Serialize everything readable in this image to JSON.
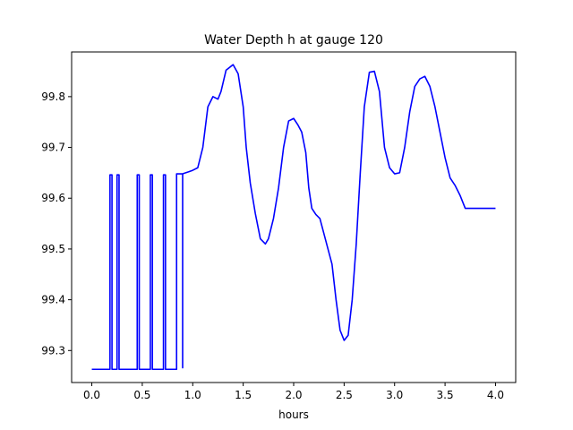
{
  "chart_data": {
    "type": "line",
    "title": "Water Depth h at gauge 120",
    "xlabel": "hours",
    "ylabel": "",
    "xlim": [
      -0.2,
      4.2
    ],
    "ylim": [
      99.237,
      99.888
    ],
    "xticks": [
      0.0,
      0.5,
      1.0,
      1.5,
      2.0,
      2.5,
      3.0,
      3.5,
      4.0
    ],
    "xtick_labels": [
      "0.0",
      "0.5",
      "1.0",
      "1.5",
      "2.0",
      "2.5",
      "3.0",
      "3.5",
      "4.0"
    ],
    "yticks": [
      99.3,
      99.4,
      99.5,
      99.6,
      99.7,
      99.8
    ],
    "ytick_labels": [
      "99.3",
      "99.4",
      "99.5",
      "99.6",
      "99.7",
      "99.8"
    ],
    "grid": false,
    "series": [
      {
        "name": "",
        "color": "#0000ff",
        "x": [
          0.0,
          0.18,
          0.18,
          0.2,
          0.2,
          0.25,
          0.25,
          0.27,
          0.27,
          0.45,
          0.45,
          0.47,
          0.47,
          0.58,
          0.58,
          0.6,
          0.6,
          0.71,
          0.71,
          0.73,
          0.73,
          0.84,
          0.84,
          0.9,
          0.9,
          0.9,
          0.9,
          0.96,
          1.0,
          1.05,
          1.1,
          1.15,
          1.2,
          1.25,
          1.28,
          1.33,
          1.4,
          1.45,
          1.5,
          1.53,
          1.57,
          1.62,
          1.67,
          1.72,
          1.75,
          1.8,
          1.85,
          1.9,
          1.95,
          2.0,
          2.04,
          2.08,
          2.12,
          2.15,
          2.18,
          2.22,
          2.26,
          2.3,
          2.34,
          2.38,
          2.42,
          2.46,
          2.5,
          2.54,
          2.58,
          2.62,
          2.66,
          2.7,
          2.75,
          2.8,
          2.85,
          2.9,
          2.95,
          3.0,
          3.05,
          3.1,
          3.15,
          3.2,
          3.25,
          3.3,
          3.35,
          3.4,
          3.45,
          3.5,
          3.55,
          3.6,
          3.65,
          3.7,
          3.75,
          3.8,
          3.85,
          3.9,
          3.95,
          4.0
        ],
        "y": [
          99.263,
          99.263,
          99.646,
          99.646,
          99.263,
          99.263,
          99.646,
          99.646,
          99.263,
          99.263,
          99.646,
          99.646,
          99.263,
          99.263,
          99.646,
          99.646,
          99.263,
          99.263,
          99.646,
          99.646,
          99.263,
          99.263,
          99.648,
          99.648,
          99.266,
          99.266,
          99.648,
          99.652,
          99.655,
          99.66,
          99.7,
          99.78,
          99.8,
          99.795,
          99.81,
          99.852,
          99.863,
          99.845,
          99.78,
          99.7,
          99.63,
          99.57,
          99.52,
          99.51,
          99.52,
          99.56,
          99.62,
          99.7,
          99.752,
          99.757,
          99.745,
          99.73,
          99.69,
          99.62,
          99.58,
          99.568,
          99.56,
          99.53,
          99.5,
          99.47,
          99.4,
          99.34,
          99.32,
          99.33,
          99.4,
          99.51,
          99.65,
          99.78,
          99.848,
          99.85,
          99.81,
          99.7,
          99.66,
          99.648,
          99.65,
          99.7,
          99.77,
          99.82,
          99.835,
          99.84,
          99.82,
          99.78,
          99.73,
          99.68,
          99.64,
          99.625,
          99.605,
          99.58,
          99.58,
          99.58,
          99.58,
          99.58,
          99.58,
          99.58
        ]
      }
    ]
  }
}
